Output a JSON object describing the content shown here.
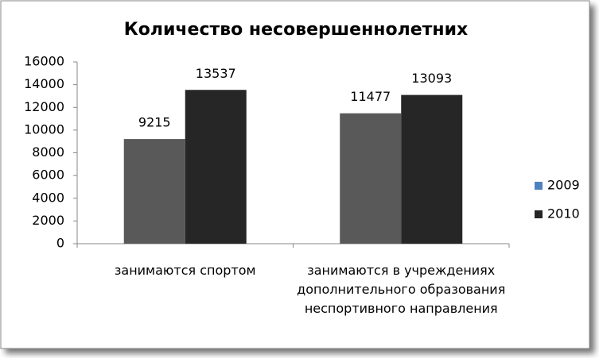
{
  "chart_data": {
    "type": "bar",
    "title": "Количество несовершеннолетних",
    "categories": [
      "занимаются спортом",
      "занимаются в учреждениях дополнительного образования неспортивного направления"
    ],
    "series": [
      {
        "name": "2009",
        "color": "#595959",
        "legend_color": "#4f81bd",
        "values": [
          9215,
          11477
        ]
      },
      {
        "name": "2010",
        "color": "#262626",
        "legend_color": "#262626",
        "values": [
          13537,
          13093
        ]
      }
    ],
    "ylim": [
      0,
      16000
    ],
    "yticks": [
      0,
      2000,
      4000,
      6000,
      8000,
      10000,
      12000,
      14000,
      16000
    ],
    "grid": false,
    "legend": "right"
  }
}
